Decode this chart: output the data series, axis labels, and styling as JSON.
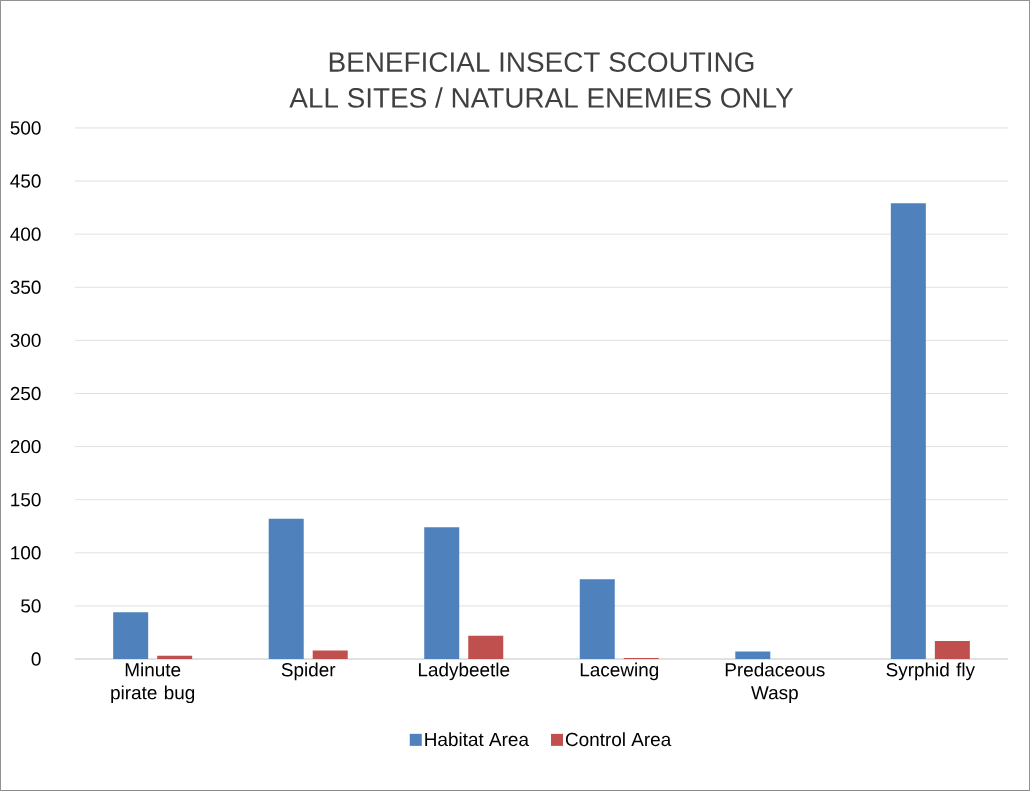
{
  "chart_data": {
    "type": "bar",
    "title": "BENEFICIAL INSECT SCOUTING\nALL SITES / NATURAL ENEMIES ONLY",
    "categories": [
      "Minute pirate bug",
      "Spider",
      "Ladybeetle",
      "Lacewing",
      "Predaceous Wasp",
      "Syrphid fly"
    ],
    "series": [
      {
        "name": "Habitat Area",
        "color": "#4f81bd",
        "values": [
          44,
          132,
          124,
          75,
          7,
          429
        ]
      },
      {
        "name": "Control Area",
        "color": "#c0504d",
        "values": [
          3,
          8,
          22,
          1,
          0,
          17
        ]
      }
    ],
    "ylim": [
      0,
      500
    ],
    "yticks": [
      0,
      50,
      100,
      150,
      200,
      250,
      300,
      350,
      400,
      450,
      500
    ],
    "grid": "y",
    "legend": "bottom"
  }
}
